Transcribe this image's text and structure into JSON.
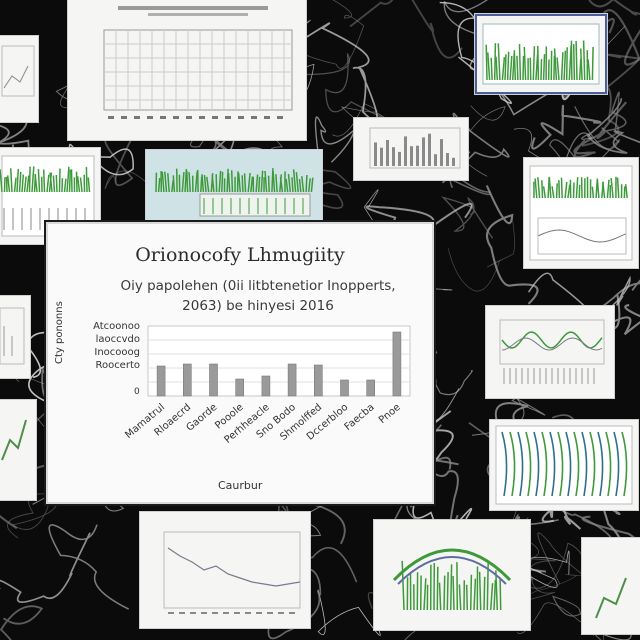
{
  "main_card": {
    "title": "Orionocofy Lhmugiity",
    "subtitle_line1": "Oiy papolehen (0ii litbtenetior Inopperts,",
    "subtitle_line2": "2063) be hinyesi 2016",
    "y_labels": [
      "Atcoonoo",
      "laoccvdo",
      "Inocooog",
      "Roocerto"
    ],
    "y_axis_title": "Cty pononns",
    "x_axis_title": "Caurbur"
  },
  "chart_data": {
    "type": "bar",
    "title": "Orionocofy Lhmugiity",
    "categories": [
      "Mamatrul",
      "Rloaecrd",
      "Gaorde",
      "Pooole",
      "Perhheacle",
      "Sno Bodo",
      "Shmolffed",
      "Dccerbloo",
      "Faecba",
      "Pnoe"
    ],
    "series": [
      {
        "name": "",
        "values": [
          30,
          32,
          32,
          17,
          20,
          32,
          31,
          16,
          16,
          64
        ]
      }
    ],
    "xlabel": "Caurbur",
    "ylabel": "Cty pononns",
    "ylim": [
      0,
      70
    ],
    "grid": true,
    "bar_color": "#9a9a9a"
  },
  "colors": {
    "background": "#0b0b0b",
    "card": "#f5f5f3",
    "grass": "#3d9a3a",
    "line": "#7a7a8c"
  }
}
